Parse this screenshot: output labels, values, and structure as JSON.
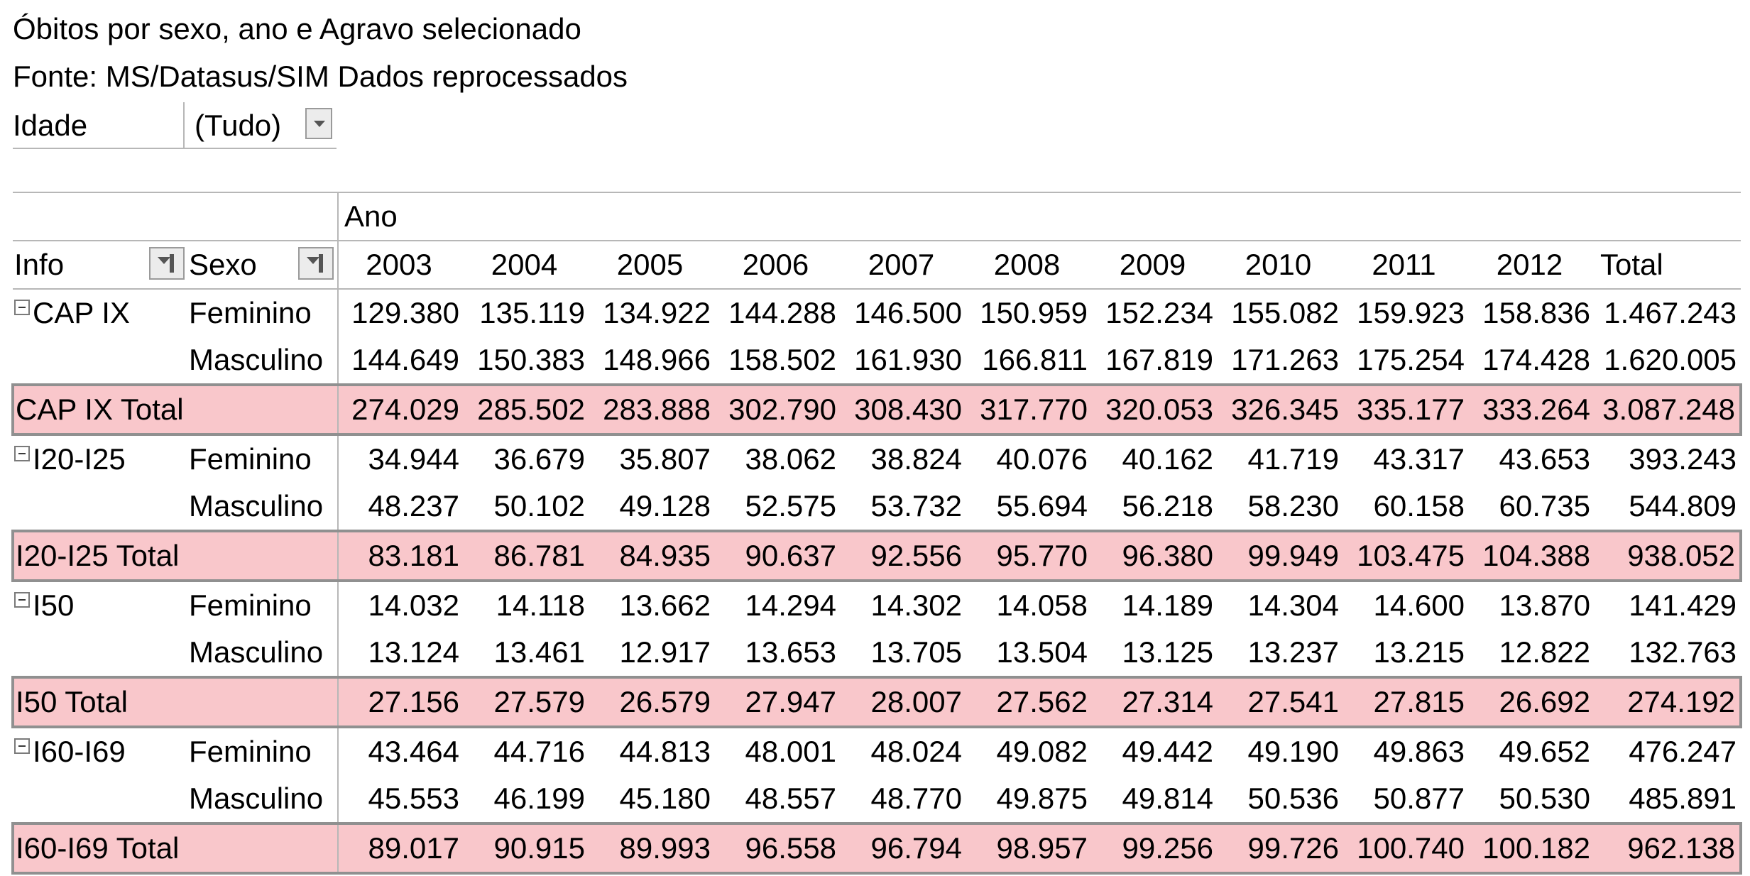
{
  "title": "Óbitos por sexo, ano e Agravo selecionado",
  "source": "Fonte: MS/Datasus/SIM Dados reprocessados",
  "filter": {
    "label": "Idade",
    "value": "(Tudo)"
  },
  "column_area_label": "Ano",
  "headers": {
    "info": "Info",
    "sexo": "Sexo",
    "total": "Total"
  },
  "years": [
    "2003",
    "2004",
    "2005",
    "2006",
    "2007",
    "2008",
    "2009",
    "2010",
    "2011",
    "2012"
  ],
  "groups": [
    {
      "name": "CAP IX",
      "rows": [
        {
          "sexo": "Feminino",
          "values": [
            "129.380",
            "135.119",
            "134.922",
            "144.288",
            "146.500",
            "150.959",
            "152.234",
            "155.082",
            "159.923",
            "158.836"
          ],
          "total": "1.467.243"
        },
        {
          "sexo": "Masculino",
          "values": [
            "144.649",
            "150.383",
            "148.966",
            "158.502",
            "161.930",
            "166.811",
            "167.819",
            "171.263",
            "175.254",
            "174.428"
          ],
          "total": "1.620.005"
        }
      ],
      "total_label": "CAP IX Total",
      "total_values": [
        "274.029",
        "285.502",
        "283.888",
        "302.790",
        "308.430",
        "317.770",
        "320.053",
        "326.345",
        "335.177",
        "333.264"
      ],
      "grand": "3.087.248"
    },
    {
      "name": "I20-I25",
      "rows": [
        {
          "sexo": "Feminino",
          "values": [
            "34.944",
            "36.679",
            "35.807",
            "38.062",
            "38.824",
            "40.076",
            "40.162",
            "41.719",
            "43.317",
            "43.653"
          ],
          "total": "393.243"
        },
        {
          "sexo": "Masculino",
          "values": [
            "48.237",
            "50.102",
            "49.128",
            "52.575",
            "53.732",
            "55.694",
            "56.218",
            "58.230",
            "60.158",
            "60.735"
          ],
          "total": "544.809"
        }
      ],
      "total_label": "I20-I25 Total",
      "total_values": [
        "83.181",
        "86.781",
        "84.935",
        "90.637",
        "92.556",
        "95.770",
        "96.380",
        "99.949",
        "103.475",
        "104.388"
      ],
      "grand": "938.052"
    },
    {
      "name": "I50",
      "rows": [
        {
          "sexo": "Feminino",
          "values": [
            "14.032",
            "14.118",
            "13.662",
            "14.294",
            "14.302",
            "14.058",
            "14.189",
            "14.304",
            "14.600",
            "13.870"
          ],
          "total": "141.429"
        },
        {
          "sexo": "Masculino",
          "values": [
            "13.124",
            "13.461",
            "12.917",
            "13.653",
            "13.705",
            "13.504",
            "13.125",
            "13.237",
            "13.215",
            "12.822"
          ],
          "total": "132.763"
        }
      ],
      "total_label": "I50 Total",
      "total_values": [
        "27.156",
        "27.579",
        "26.579",
        "27.947",
        "28.007",
        "27.562",
        "27.314",
        "27.541",
        "27.815",
        "26.692"
      ],
      "grand": "274.192"
    },
    {
      "name": "I60-I69",
      "rows": [
        {
          "sexo": "Feminino",
          "values": [
            "43.464",
            "44.716",
            "44.813",
            "48.001",
            "48.024",
            "49.082",
            "49.442",
            "49.190",
            "49.863",
            "49.652"
          ],
          "total": "476.247"
        },
        {
          "sexo": "Masculino",
          "values": [
            "45.553",
            "46.199",
            "45.180",
            "48.557",
            "48.770",
            "49.875",
            "49.814",
            "50.536",
            "50.877",
            "50.530"
          ],
          "total": "485.891"
        }
      ],
      "total_label": "I60-I69 Total",
      "total_values": [
        "89.017",
        "90.915",
        "89.993",
        "96.558",
        "96.794",
        "98.957",
        "99.256",
        "99.726",
        "100.740",
        "100.182"
      ],
      "grand": "962.138"
    }
  ],
  "colors": {
    "total_row_bg": "#f9c7cb",
    "grid": "#b7b7b7",
    "total_border": "#909090"
  },
  "icons": {
    "collapse": "collapse-minus-icon",
    "filter": "filter-dropdown-icon"
  }
}
